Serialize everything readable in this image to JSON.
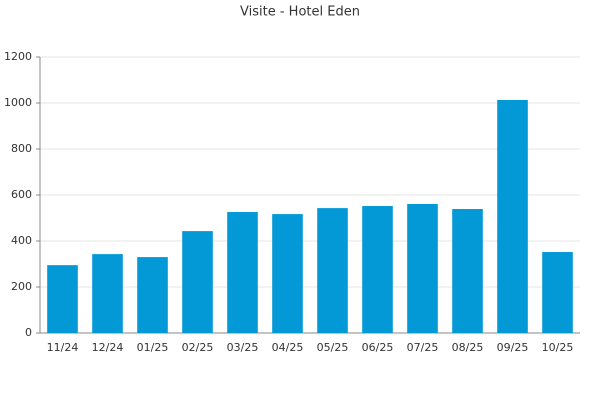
{
  "chart_data": {
    "type": "bar",
    "title": "Visite - Hotel Eden",
    "categories": [
      "11/24",
      "12/24",
      "01/25",
      "02/25",
      "03/25",
      "04/25",
      "05/25",
      "06/25",
      "07/25",
      "08/25",
      "09/25",
      "10/25"
    ],
    "values": [
      295,
      343,
      330,
      443,
      526,
      517,
      543,
      552,
      561,
      539,
      1013,
      352
    ],
    "color": "#0299d6",
    "ylim": [
      0,
      1200
    ],
    "yticks": [
      0,
      200,
      400,
      600,
      800,
      1000,
      1200
    ],
    "grid": true
  }
}
